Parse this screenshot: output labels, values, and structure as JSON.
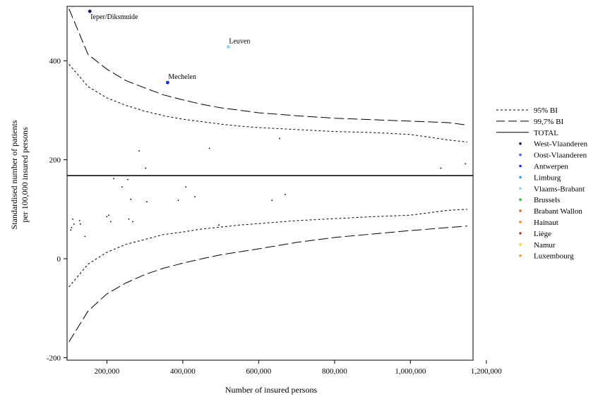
{
  "chart_data": {
    "type": "scatter",
    "xlabel": "Number of insured persons",
    "ylabel_lines": [
      "Standardised number of patients",
      "per 100,000 insured persons"
    ],
    "xlim": [
      95000,
      1165000
    ],
    "ylim": [
      -205,
      510
    ],
    "x_ticks": [
      200000,
      400000,
      600000,
      800000,
      1000000,
      1200000
    ],
    "x_tick_labels": [
      "200,000",
      "400,000",
      "600,000",
      "800,000",
      "1,000,000",
      "1,200,000"
    ],
    "y_ticks": [
      -200,
      0,
      200,
      400
    ],
    "y_tick_labels": [
      "-200",
      "0",
      "200",
      "400"
    ],
    "total": 168,
    "limits": {
      "x": [
        100000,
        150000,
        200000,
        250000,
        300000,
        350000,
        400000,
        450000,
        500000,
        550000,
        600000,
        700000,
        800000,
        900000,
        1000000,
        1100000,
        1150000
      ],
      "upper_997": [
        505,
        413,
        383,
        360,
        345,
        331,
        321,
        312,
        305,
        300,
        295,
        289,
        284,
        281,
        278,
        275,
        270
      ],
      "upper_95": [
        393,
        348,
        325,
        310,
        298,
        289,
        282,
        277,
        272,
        268,
        265,
        261,
        257,
        255,
        251,
        240,
        236
      ],
      "lower_95": [
        -57,
        -11,
        13,
        29,
        39,
        49,
        54,
        60,
        64,
        68,
        71,
        77,
        81,
        85,
        88,
        98,
        100
      ],
      "lower_997": [
        -168,
        -106,
        -71,
        -49,
        -32,
        -19,
        -9,
        0,
        8,
        14,
        20,
        33,
        43,
        50,
        57,
        63,
        66
      ]
    },
    "series": [
      {
        "name": "West-Vlaanderen",
        "color": "#111a66",
        "points": [
          {
            "x": 155000,
            "y": 500,
            "label": "Ieper/Diksmuide"
          }
        ]
      },
      {
        "name": "Oost-Vlaanderen",
        "color": "#3a6ad6",
        "points": []
      },
      {
        "name": "Antwerpen",
        "color": "#1a2ee0",
        "points": [
          {
            "x": 360000,
            "y": 356,
            "label": "Mechelen"
          }
        ]
      },
      {
        "name": "Limburg",
        "color": "#2a9be0",
        "points": []
      },
      {
        "name": "Vlaams-Brabant",
        "color": "#8fd4ee",
        "points": [
          {
            "x": 520000,
            "y": 428,
            "label": "Leuven"
          }
        ]
      },
      {
        "name": "Brussels",
        "color": "#2fb83a",
        "points": []
      },
      {
        "name": "Brabant Wallon",
        "color": "#d26a3a",
        "points": []
      },
      {
        "name": "Hainaut",
        "color": "#f08a20",
        "points": []
      },
      {
        "name": "Liège",
        "color": "#a64a2a",
        "points": []
      },
      {
        "name": "Namur",
        "color": "#f2d21a",
        "points": []
      },
      {
        "name": "Luxembourg",
        "color": "#e0a030",
        "points": []
      }
    ],
    "unlabeled_points": [
      {
        "x": 105000,
        "y": 58
      },
      {
        "x": 107000,
        "y": 63
      },
      {
        "x": 110000,
        "y": 80
      },
      {
        "x": 113000,
        "y": 70
      },
      {
        "x": 128000,
        "y": 77
      },
      {
        "x": 130000,
        "y": 70
      },
      {
        "x": 142000,
        "y": 45
      },
      {
        "x": 200000,
        "y": 85
      },
      {
        "x": 205000,
        "y": 88
      },
      {
        "x": 210000,
        "y": 75
      },
      {
        "x": 218000,
        "y": 162
      },
      {
        "x": 240000,
        "y": 145
      },
      {
        "x": 255000,
        "y": 160
      },
      {
        "x": 258000,
        "y": 80
      },
      {
        "x": 263000,
        "y": 120
      },
      {
        "x": 268000,
        "y": 75
      },
      {
        "x": 285000,
        "y": 218
      },
      {
        "x": 302000,
        "y": 183
      },
      {
        "x": 305000,
        "y": 115
      },
      {
        "x": 388000,
        "y": 118
      },
      {
        "x": 408000,
        "y": 145
      },
      {
        "x": 432000,
        "y": 125
      },
      {
        "x": 470000,
        "y": 223
      },
      {
        "x": 495000,
        "y": 68
      },
      {
        "x": 635000,
        "y": 118
      },
      {
        "x": 655000,
        "y": 243
      },
      {
        "x": 670000,
        "y": 130
      },
      {
        "x": 1080000,
        "y": 183
      },
      {
        "x": 1145000,
        "y": 192
      }
    ],
    "legend": {
      "placement": "right",
      "lines": [
        {
          "label": "95% BI",
          "style": "dotted"
        },
        {
          "label": "99,7% BI",
          "style": "dashed"
        },
        {
          "label": "TOTAL",
          "style": "solid"
        }
      ]
    }
  }
}
